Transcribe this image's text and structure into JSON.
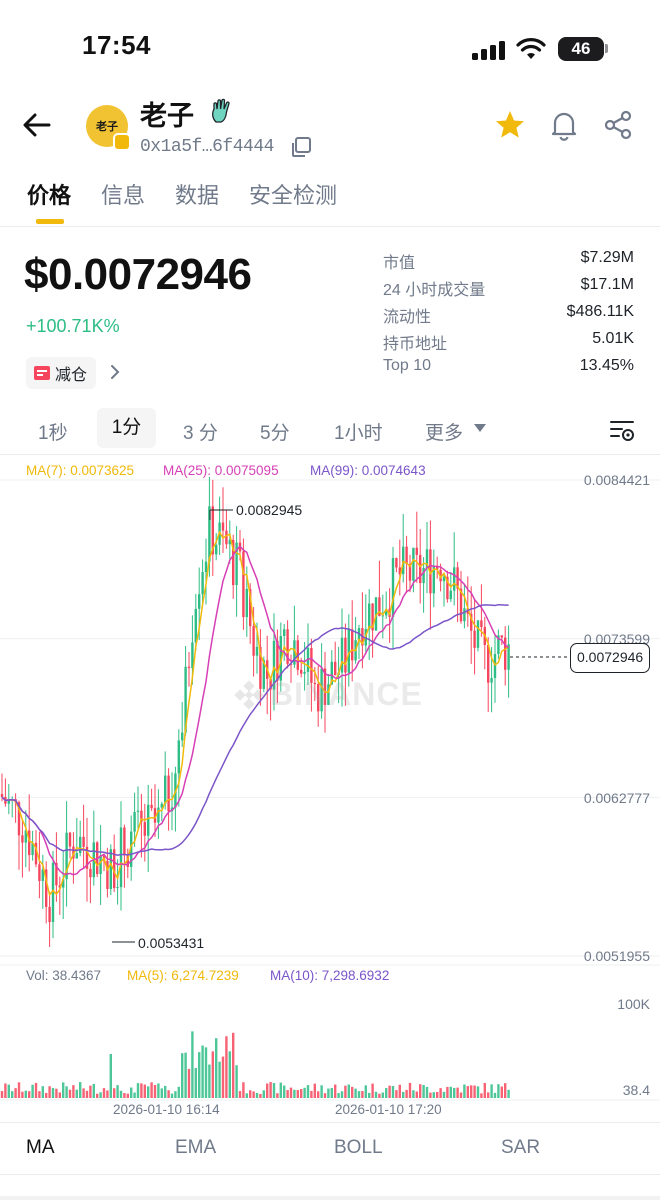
{
  "status_bar": {
    "time": "17:54",
    "battery": "46"
  },
  "header": {
    "avatar_text": "老子",
    "token_name": "老子",
    "address": "0x1a5f…6f4444"
  },
  "tabs": [
    {
      "label": "价格",
      "active": true
    },
    {
      "label": "信息",
      "active": false
    },
    {
      "label": "数据",
      "active": false
    },
    {
      "label": "安全检测",
      "active": false
    }
  ],
  "price": {
    "value": "$0.0072946",
    "change": "+100.71K%",
    "reduce_tag": "减仓"
  },
  "stats": [
    {
      "label": "市值",
      "value": "$7.29M"
    },
    {
      "label": "24 小时成交量",
      "value": "$17.1M"
    },
    {
      "label": "流动性",
      "value": "$486.11K"
    },
    {
      "label": "持币地址",
      "value": "5.01K"
    },
    {
      "label": "Top 10",
      "value": "13.45%"
    }
  ],
  "intervals": [
    "1秒",
    "1分",
    "3 分",
    "5分",
    "1小时",
    "更多"
  ],
  "active_interval": "1分",
  "ma_labels": {
    "ma7": "MA(7): 0.0073625",
    "ma25": "MA(25): 0.0075095",
    "ma99": "MA(99): 0.0074643"
  },
  "colors": {
    "up": "#2ebd85",
    "down": "#f6465d",
    "ma7": "#f0b90b",
    "ma25": "#d63fb5",
    "ma99": "#7b55c9",
    "accent": "#f0b90b"
  },
  "chart_data": {
    "type": "candlestick",
    "price_axis_ticks": [
      "0.0084421",
      "0.0073599",
      "0.0062777",
      "0.0051955"
    ],
    "ylim": [
      0.0051955,
      0.0084421
    ],
    "high_marker": "0.0082945",
    "low_marker": "0.0053431",
    "current_price": "0.0072946",
    "x_tick_labels": [
      "2026-01-10 16:14",
      "2026-01-10 17:20"
    ],
    "volume": {
      "labels": {
        "vol": "Vol: 38.4367",
        "ma5": "MA(5): 6,274.7239",
        "ma10": "MA(10): 7,298.6932"
      },
      "axis_ticks": [
        "100K",
        "38.4"
      ]
    }
  },
  "watermark": "BINANCE",
  "indicators": [
    {
      "label": "MA",
      "active": true
    },
    {
      "label": "EMA",
      "active": false
    },
    {
      "label": "BOLL",
      "active": false
    },
    {
      "label": "SAR",
      "active": false
    }
  ]
}
